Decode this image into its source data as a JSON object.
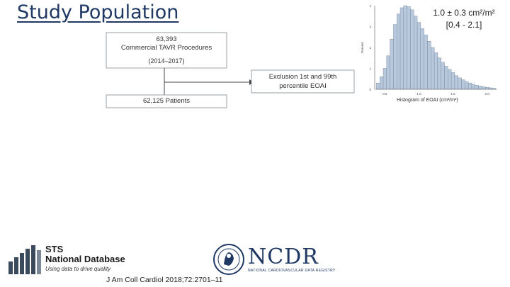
{
  "title": "Study Population",
  "flow": {
    "box1": {
      "line1": "63,393",
      "line2": "Commercial TAVR Procedures",
      "line3": "(2014–2017)"
    },
    "exclusion": {
      "line1": "Exclusion 1st and 99th",
      "line2": "percentile EOAI"
    },
    "box2": {
      "line1": "62,125 Patients"
    }
  },
  "histogram": {
    "stat_line1": "1.0 ± 0.3 cm²/m²",
    "stat_line2": "[0.4 - 2.1]",
    "caption": "Histogram of EOAI (cm²/m²)"
  },
  "chart_data": {
    "type": "bar",
    "title": "",
    "xlabel": "",
    "ylabel": "Percent",
    "x": [
      0.4,
      0.45,
      0.5,
      0.55,
      0.6,
      0.65,
      0.7,
      0.75,
      0.8,
      0.85,
      0.9,
      0.95,
      1.0,
      1.05,
      1.1,
      1.15,
      1.2,
      1.25,
      1.3,
      1.35,
      1.4,
      1.45,
      1.5,
      1.55,
      1.6,
      1.65,
      1.7,
      1.75,
      1.8,
      1.85,
      1.9,
      1.95,
      2.0,
      2.05,
      2.1
    ],
    "values": [
      0.3,
      0.6,
      1.0,
      1.6,
      2.4,
      3.1,
      3.6,
      3.9,
      4.0,
      3.95,
      3.8,
      3.5,
      3.2,
      2.9,
      2.6,
      2.3,
      2.0,
      1.75,
      1.5,
      1.3,
      1.1,
      0.95,
      0.8,
      0.65,
      0.55,
      0.45,
      0.37,
      0.3,
      0.24,
      0.19,
      0.15,
      0.12,
      0.09,
      0.07,
      0.05
    ],
    "ylim": [
      0,
      4
    ],
    "xlim": [
      0.35,
      2.15
    ],
    "x_ticks": [
      "0.5",
      "1.0",
      "1.5",
      "2.0"
    ],
    "y_ticks": [
      "0",
      "1",
      "2",
      "3",
      "4"
    ],
    "bar_color": "#b8c9de",
    "bar_edge": "#6f7f92"
  },
  "logos": {
    "sts_line1": "STS",
    "sts_line2": "National Database",
    "sts_tag": "Using data to drive quality",
    "ncdr_word": "NCDR",
    "ncdr_sub": "NATIONAL CARDIOVASCULAR DATA REGISTRY"
  },
  "citation": "J Am Coll Cardiol 2018;72:2701–11"
}
